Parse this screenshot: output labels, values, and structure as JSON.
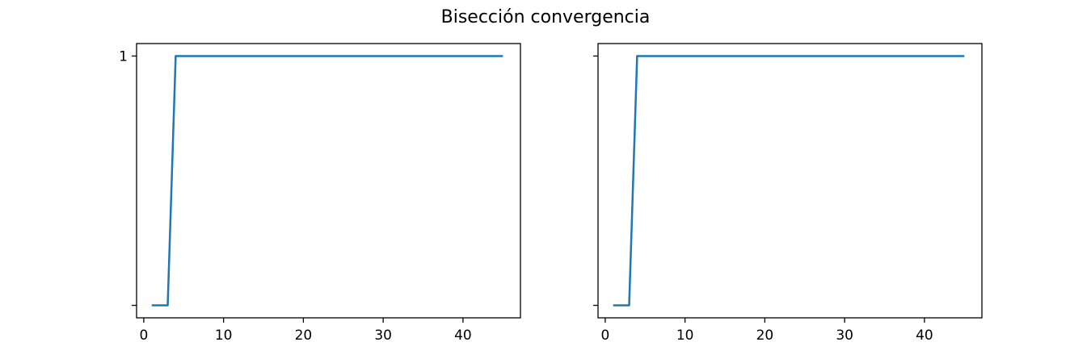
{
  "title": "Bisección convergencia",
  "colors": {
    "line": "#1f77b4"
  },
  "chart_data": [
    {
      "type": "line",
      "x": [
        1,
        2,
        3,
        4,
        5,
        6,
        7,
        8,
        9,
        10,
        11,
        12,
        13,
        14,
        15,
        16,
        17,
        18,
        19,
        20,
        21,
        22,
        23,
        24,
        25,
        26,
        27,
        28,
        29,
        30,
        31,
        32,
        33,
        34,
        35,
        36,
        37,
        38,
        39,
        40,
        41,
        42,
        43,
        44,
        45
      ],
      "values": [
        0,
        0,
        0,
        1,
        1,
        1,
        1,
        1,
        1,
        1,
        1,
        1,
        1,
        1,
        1,
        1,
        1,
        1,
        1,
        1,
        1,
        1,
        1,
        1,
        1,
        1,
        1,
        1,
        1,
        1,
        1,
        1,
        1,
        1,
        1,
        1,
        1,
        1,
        1,
        1,
        1,
        1,
        1,
        1,
        1
      ],
      "xticks": [
        0,
        10,
        20,
        30,
        40
      ],
      "yticks": [
        0,
        1
      ],
      "ytick_labels": [
        "",
        "1"
      ],
      "xlim": [
        -0.9,
        47.2
      ],
      "ylim": [
        -0.05,
        1.05
      ],
      "grid": false
    },
    {
      "type": "line",
      "x": [
        1,
        2,
        3,
        4,
        5,
        6,
        7,
        8,
        9,
        10,
        11,
        12,
        13,
        14,
        15,
        16,
        17,
        18,
        19,
        20,
        21,
        22,
        23,
        24,
        25,
        26,
        27,
        28,
        29,
        30,
        31,
        32,
        33,
        34,
        35,
        36,
        37,
        38,
        39,
        40,
        41,
        42,
        43,
        44,
        45
      ],
      "values": [
        0,
        0,
        0,
        1,
        1,
        1,
        1,
        1,
        1,
        1,
        1,
        1,
        1,
        1,
        1,
        1,
        1,
        1,
        1,
        1,
        1,
        1,
        1,
        1,
        1,
        1,
        1,
        1,
        1,
        1,
        1,
        1,
        1,
        1,
        1,
        1,
        1,
        1,
        1,
        1,
        1,
        1,
        1,
        1,
        1
      ],
      "xticks": [
        0,
        10,
        20,
        30,
        40
      ],
      "yticks": [
        0,
        1
      ],
      "ytick_labels": [
        "",
        ""
      ],
      "xlim": [
        -0.9,
        47.2
      ],
      "ylim": [
        -0.05,
        1.05
      ],
      "grid": false
    }
  ]
}
